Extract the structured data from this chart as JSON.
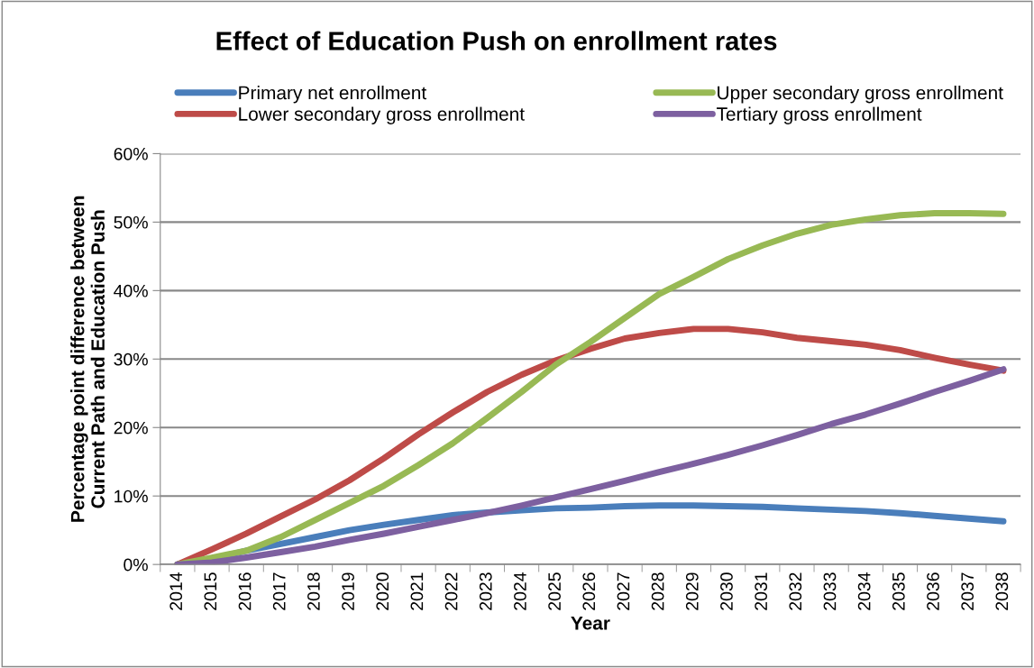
{
  "chart_data": {
    "type": "line",
    "title": "Effect of Education Push on enrollment rates",
    "xlabel": "Year",
    "ylabel": "Percentage point difference between\nCurrent Path and Education Push",
    "categories": [
      "2014",
      "2015",
      "2016",
      "2017",
      "2018",
      "2019",
      "2020",
      "2021",
      "2022",
      "2023",
      "2024",
      "2025",
      "2026",
      "2027",
      "2028",
      "2029",
      "2030",
      "2031",
      "2032",
      "2033",
      "2034",
      "2035",
      "2036",
      "2037",
      "2038"
    ],
    "series": [
      {
        "name": "Primary net enrollment",
        "color": "#4a7ebb",
        "values": [
          0,
          0.8,
          2,
          3,
          4,
          5,
          5.8,
          6.5,
          7.2,
          7.6,
          7.9,
          8.2,
          8.3,
          8.5,
          8.6,
          8.6,
          8.5,
          8.4,
          8.2,
          8.0,
          7.8,
          7.5,
          7.1,
          6.7,
          6.3
        ]
      },
      {
        "name": "Lower secondary gross enrollment",
        "color": "#be4b48",
        "values": [
          0,
          2.2,
          4.5,
          7,
          9.5,
          12.3,
          15.5,
          19,
          22.2,
          25.2,
          27.7,
          29.8,
          31.5,
          33,
          33.8,
          34.4,
          34.4,
          33.9,
          33.1,
          32.6,
          32.1,
          31.3,
          30.2,
          29.2,
          28.3
        ]
      },
      {
        "name": "Upper secondary gross enrollment",
        "color": "#98b954",
        "values": [
          0,
          1,
          2,
          4,
          6.5,
          9,
          11.5,
          14.5,
          17.7,
          21.4,
          25.2,
          29.2,
          32.5,
          36,
          39.5,
          42,
          44.6,
          46.6,
          48.3,
          49.6,
          50.4,
          51,
          51.3,
          51.3,
          51.2
        ]
      },
      {
        "name": "Tertiary gross enrollment",
        "color": "#7d60a0",
        "values": [
          0,
          0.3,
          1,
          1.8,
          2.6,
          3.6,
          4.5,
          5.5,
          6.5,
          7.5,
          8.6,
          9.8,
          11,
          12.2,
          13.5,
          14.7,
          16,
          17.4,
          18.9,
          20.5,
          21.9,
          23.5,
          25.2,
          26.8,
          28.5
        ]
      }
    ],
    "ylim": [
      0,
      60
    ],
    "yticks": [
      {
        "value": 0,
        "label": "0%"
      },
      {
        "value": 10,
        "label": "10%"
      },
      {
        "value": 20,
        "label": "20%"
      },
      {
        "value": 30,
        "label": "30%"
      },
      {
        "value": 40,
        "label": "40%"
      },
      {
        "value": 50,
        "label": "50%"
      },
      {
        "value": 60,
        "label": "60%"
      }
    ],
    "grid": "y",
    "legend": "top",
    "marker": "none",
    "line_style": "solid"
  }
}
